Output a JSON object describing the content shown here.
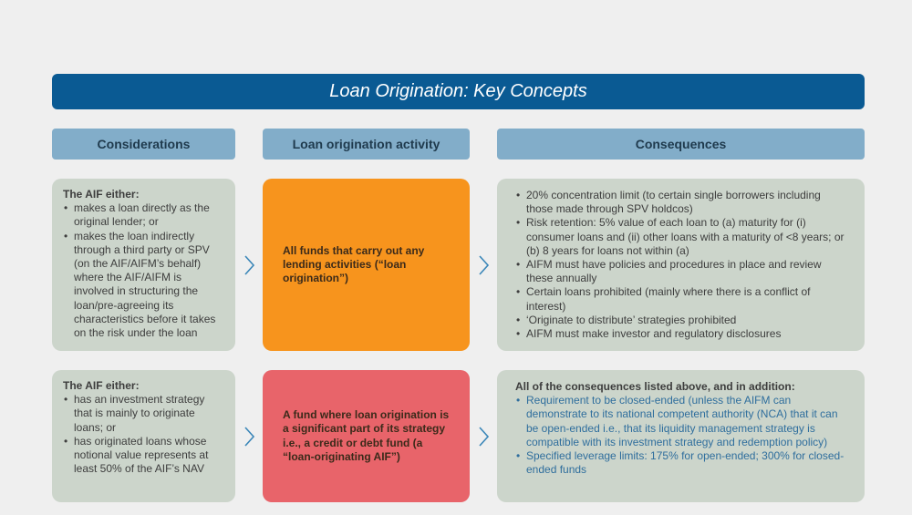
{
  "title": "Loan Origination: Key Concepts",
  "headers": {
    "considerations": "Considerations",
    "activity": "Loan origination activity",
    "consequences": "Consequences"
  },
  "rows": [
    {
      "considerations": {
        "lead": "The AIF either:",
        "items": [
          "makes a loan directly as the original lender; or",
          "makes the loan indirectly through a third party or SPV (on the AIF/AIFM’s behalf) where the AIF/AIFM is involved in structuring the loan/pre-agreeing its characteristics before it takes on the risk under the loan"
        ]
      },
      "activity": "All funds that carry out any lending activities (“loan origination”)",
      "activity_color": "#f7941d",
      "consequences": {
        "items": [
          "20% concentration limit (to certain single borrowers including those made through SPV holdcos)",
          "Risk retention: 5% value of each loan to (a) maturity for (i) consumer loans and (ii) other loans with a maturity of <8 years; or (b) 8 years for loans not within (a)",
          "AIFM must have policies and procedures in place and review these annually",
          "Certain loans prohibited (mainly where there is a conflict of interest)",
          "‘Originate to distribute’ strategies prohibited",
          "AIFM must make investor and regulatory disclosures"
        ]
      }
    },
    {
      "considerations": {
        "lead": "The AIF either:",
        "items": [
          "has an investment strategy that is mainly to originate loans; or",
          "has originated loans whose notional value represents at least 50% of the AIF’s NAV"
        ]
      },
      "activity": "A fund where loan origination is a significant part of its strategy i.e., a credit or debt fund (a “loan-originating AIF”)",
      "activity_color": "#e8646a",
      "consequences": {
        "lead": "All of the consequences listed above, and in addition:",
        "items": [
          "Requirement to be closed-ended (unless the AIFM can demonstrate to its national competent authority (NCA) that it can be open-ended i.e., that its liquidity management strategy is compatible with its investment strategy and redemption policy)",
          "Specified leverage limits: 175% for open-ended; 300% for closed-ended funds"
        ]
      }
    }
  ]
}
